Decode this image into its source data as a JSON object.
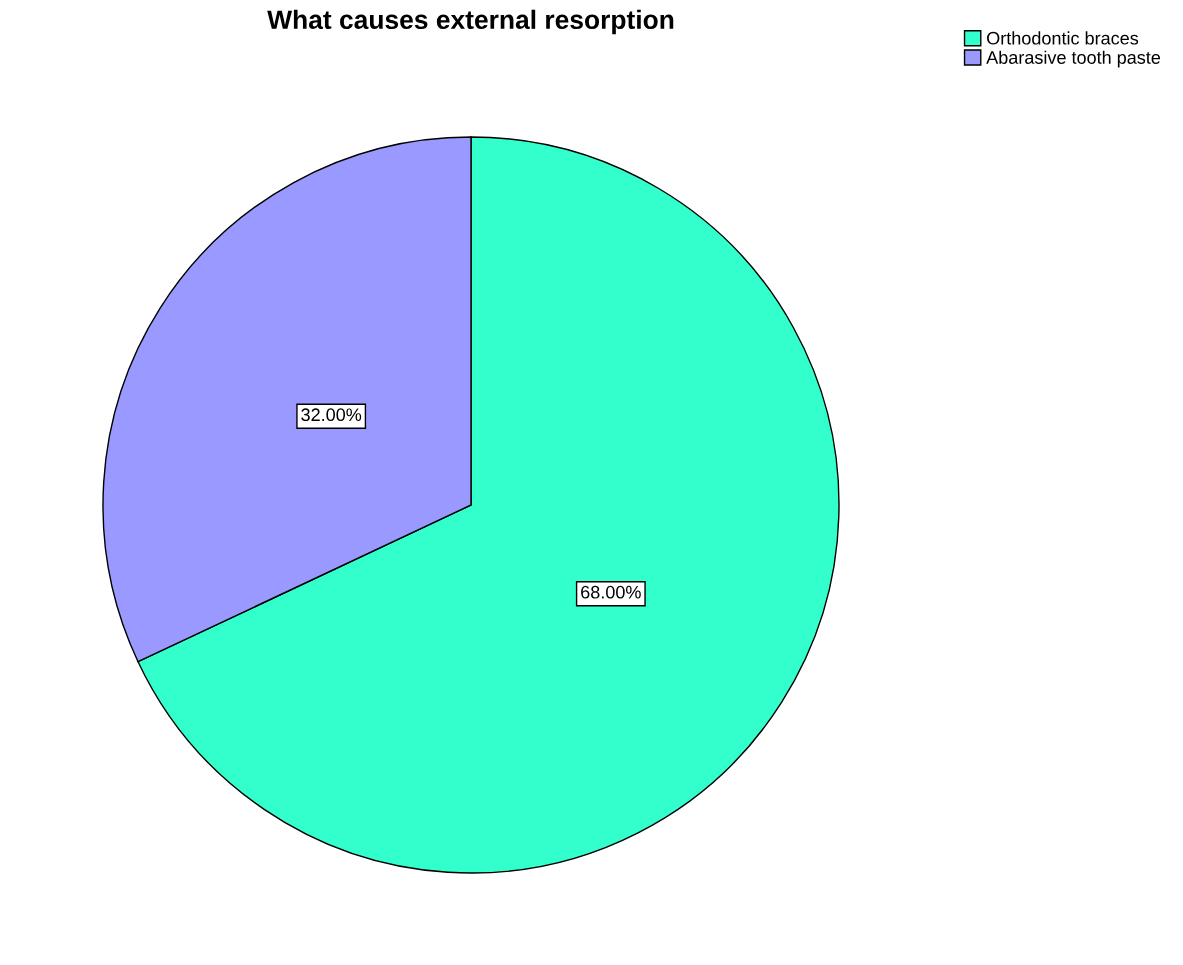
{
  "chart_data": {
    "type": "pie",
    "title": "What causes external resorption",
    "categories": [
      "Orthodontic braces",
      "Abarasive tooth paste"
    ],
    "values": [
      68,
      32
    ],
    "colors": [
      "#33ffcc",
      "#9999ff"
    ],
    "value_labels": [
      "68.00%",
      "32.00%"
    ],
    "legend": "top right"
  }
}
